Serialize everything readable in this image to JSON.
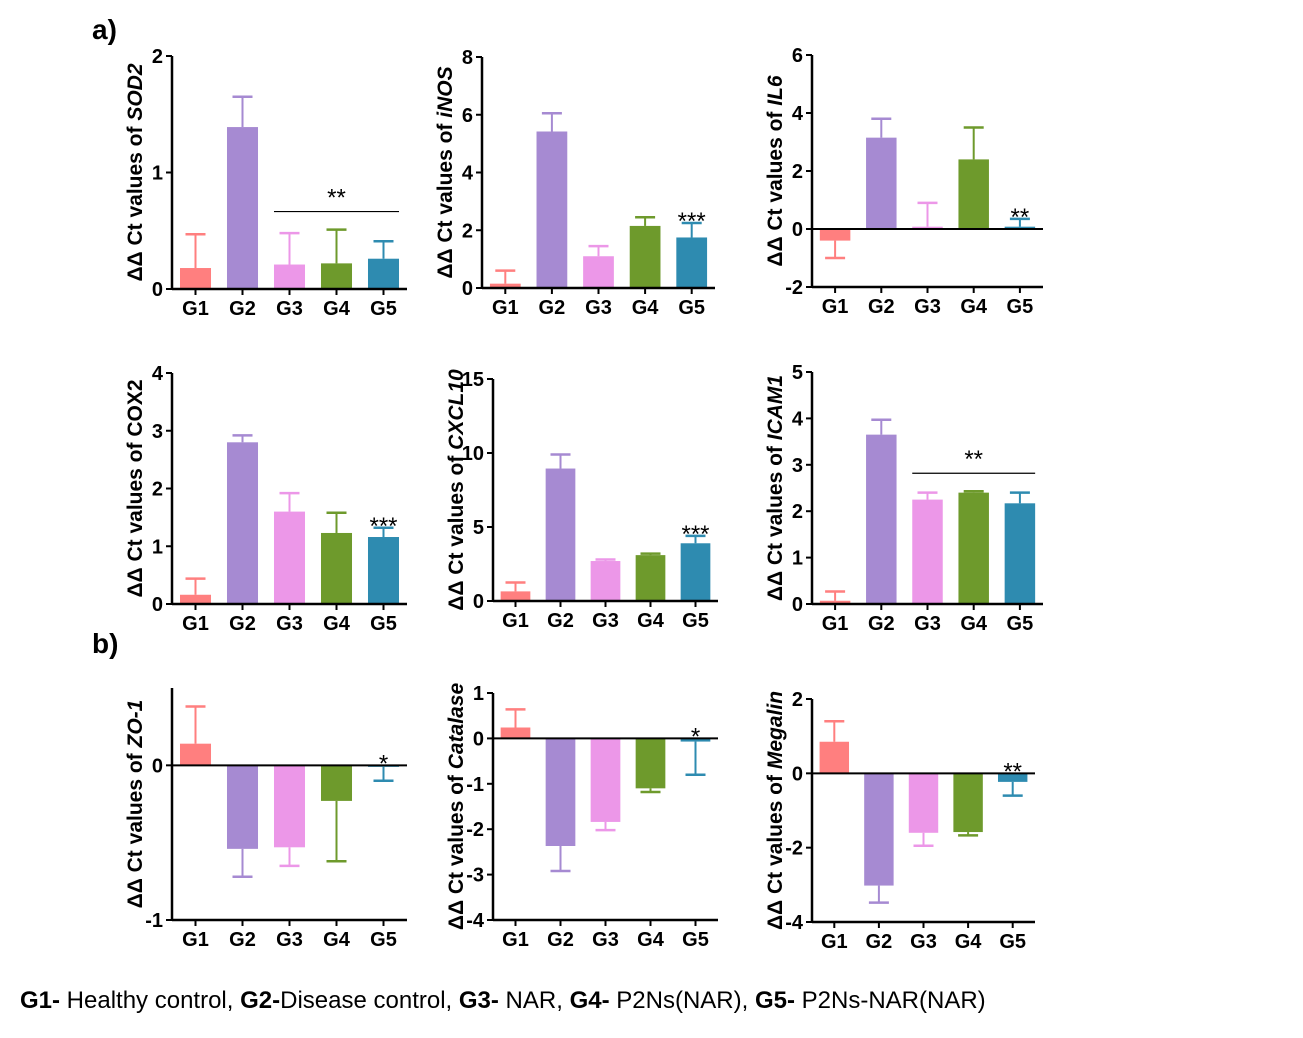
{
  "panels": [
    {
      "label": "a)"
    },
    {
      "label": "b)"
    }
  ],
  "groups": [
    "G1",
    "G2",
    "G3",
    "G4",
    "G5"
  ],
  "colors": {
    "G1": "#FF7F7F",
    "G2": "#A68AD2",
    "G3": "#EC97E8",
    "G4": "#6E9A2C",
    "G5": "#2E8BB0"
  },
  "caption": [
    {
      "bold": "G1-",
      "text": " Healthy control, "
    },
    {
      "bold": "G2-",
      "text": "Disease control, "
    },
    {
      "bold": "G3-",
      "text": " NAR, "
    },
    {
      "bold": "G4-",
      "text": " P2Ns(NAR), "
    },
    {
      "bold": "G5-",
      "text": " P2Ns-NAR(NAR)"
    }
  ],
  "chart_data": [
    {
      "type": "bar",
      "panel": "a",
      "title": "",
      "ylabel_prefix": "ΔΔ Ct values of ",
      "gene": "SOD2",
      "gene_italic": true,
      "categories": [
        "G1",
        "G2",
        "G3",
        "G4",
        "G5"
      ],
      "values": [
        0.18,
        1.39,
        0.21,
        0.22,
        0.26
      ],
      "error_bar_ends": [
        0.47,
        1.65,
        0.48,
        0.51,
        0.41
      ],
      "ylim": [
        0,
        2
      ],
      "yticks": [
        0,
        1,
        2
      ],
      "annotations": [
        {
          "text": "**",
          "span": [
            "G3",
            "G5"
          ],
          "line": true
        }
      ]
    },
    {
      "type": "bar",
      "panel": "a",
      "title": "",
      "ylabel_prefix": "ΔΔ Ct values of ",
      "gene": "iNOS",
      "gene_italic": true,
      "categories": [
        "G1",
        "G2",
        "G3",
        "G4",
        "G5"
      ],
      "values": [
        0.15,
        5.42,
        1.1,
        2.15,
        1.75
      ],
      "error_bar_ends": [
        0.6,
        6.05,
        1.45,
        2.45,
        2.25
      ],
      "ylim": [
        0,
        8
      ],
      "yticks": [
        0,
        2,
        4,
        6,
        8
      ],
      "annotations": [
        {
          "text": "***",
          "span": [
            "G5",
            "G5"
          ],
          "line": false
        }
      ]
    },
    {
      "type": "bar",
      "panel": "a",
      "title": "",
      "ylabel_prefix": "ΔΔ Ct values of ",
      "gene": "IL6",
      "gene_italic": true,
      "categories": [
        "G1",
        "G2",
        "G3",
        "G4",
        "G5"
      ],
      "values": [
        -0.4,
        3.15,
        0.08,
        2.4,
        0.08
      ],
      "error_bar_ends": [
        -1.0,
        3.8,
        0.9,
        3.5,
        0.35
      ],
      "ylim": [
        -2,
        6
      ],
      "yticks": [
        -2,
        0,
        2,
        4,
        6
      ],
      "annotations": [
        {
          "text": "**",
          "span": [
            "G5",
            "G5"
          ],
          "line": false
        }
      ]
    },
    {
      "type": "bar",
      "panel": "a",
      "title": "",
      "ylabel_prefix": "ΔΔ Ct values of ",
      "gene": "COX2",
      "gene_italic": false,
      "categories": [
        "G1",
        "G2",
        "G3",
        "G4",
        "G5"
      ],
      "values": [
        0.16,
        2.8,
        1.6,
        1.23,
        1.16
      ],
      "error_bar_ends": [
        0.44,
        2.92,
        1.92,
        1.58,
        1.32
      ],
      "ylim": [
        0,
        4
      ],
      "yticks": [
        0,
        1,
        2,
        3,
        4
      ],
      "annotations": [
        {
          "text": "***",
          "span": [
            "G5",
            "G5"
          ],
          "line": false
        }
      ]
    },
    {
      "type": "bar",
      "panel": "a",
      "title": "",
      "ylabel_prefix": "ΔΔ Ct values of ",
      "gene": "CXCL10",
      "gene_italic": true,
      "categories": [
        "G1",
        "G2",
        "G3",
        "G4",
        "G5"
      ],
      "values": [
        0.65,
        8.95,
        2.7,
        3.1,
        3.9
      ],
      "error_bar_ends": [
        1.25,
        9.9,
        2.8,
        3.2,
        4.4
      ],
      "ylim": [
        0,
        15
      ],
      "yticks": [
        0,
        5,
        10,
        15
      ],
      "annotations": [
        {
          "text": "***",
          "span": [
            "G5",
            "G5"
          ],
          "line": false
        }
      ]
    },
    {
      "type": "bar",
      "panel": "a",
      "title": "",
      "ylabel_prefix": "ΔΔ Ct values of ",
      "gene": "ICAM1",
      "gene_italic": true,
      "categories": [
        "G1",
        "G2",
        "G3",
        "G4",
        "G5"
      ],
      "values": [
        0.07,
        3.65,
        2.25,
        2.4,
        2.17
      ],
      "error_bar_ends": [
        0.27,
        3.97,
        2.4,
        2.43,
        2.4
      ],
      "ylim": [
        0,
        5
      ],
      "yticks": [
        0,
        1,
        2,
        3,
        4,
        5
      ],
      "annotations": [
        {
          "text": "**",
          "span": [
            "G3",
            "G5"
          ],
          "line": true
        }
      ]
    },
    {
      "type": "bar",
      "panel": "b",
      "title": "",
      "ylabel_prefix": "ΔΔ Ct values of ",
      "gene": "ZO-1",
      "gene_italic": true,
      "categories": [
        "G1",
        "G2",
        "G3",
        "G4",
        "G5"
      ],
      "values": [
        0.14,
        -0.54,
        -0.53,
        -0.23,
        -0.01
      ],
      "error_bar_ends": [
        0.38,
        -0.72,
        -0.65,
        -0.62,
        -0.1
      ],
      "ylim": [
        -1,
        0.5
      ],
      "yticks": [
        -1,
        0
      ],
      "annotations": [
        {
          "text": "*",
          "span": [
            "G5",
            "G5"
          ],
          "line": false
        }
      ]
    },
    {
      "type": "bar",
      "panel": "b",
      "title": "",
      "ylabel_prefix": "ΔΔ Ct values of ",
      "gene": "Catalase",
      "gene_italic": true,
      "categories": [
        "G1",
        "G2",
        "G3",
        "G4",
        "G5"
      ],
      "values": [
        0.24,
        -2.37,
        -1.84,
        -1.1,
        -0.07
      ],
      "error_bar_ends": [
        0.64,
        -2.92,
        -2.02,
        -1.18,
        -0.8
      ],
      "ylim": [
        -4,
        1
      ],
      "yticks": [
        -4,
        -3,
        -2,
        -1,
        0,
        1
      ],
      "annotations": [
        {
          "text": "*",
          "span": [
            "G5",
            "G5"
          ],
          "line": false
        }
      ]
    },
    {
      "type": "bar",
      "panel": "b",
      "title": "",
      "ylabel_prefix": "ΔΔ Ct values of ",
      "gene": "Megalin",
      "gene_italic": true,
      "categories": [
        "G1",
        "G2",
        "G3",
        "G4",
        "G5"
      ],
      "values": [
        0.85,
        -3.02,
        -1.6,
        -1.58,
        -0.23
      ],
      "error_bar_ends": [
        1.4,
        -3.48,
        -1.95,
        -1.67,
        -0.6
      ],
      "ylim": [
        -4,
        2
      ],
      "yticks": [
        -4,
        -2,
        0,
        2
      ],
      "annotations": [
        {
          "text": "**",
          "span": [
            "G5",
            "G5"
          ],
          "line": false
        }
      ]
    }
  ]
}
